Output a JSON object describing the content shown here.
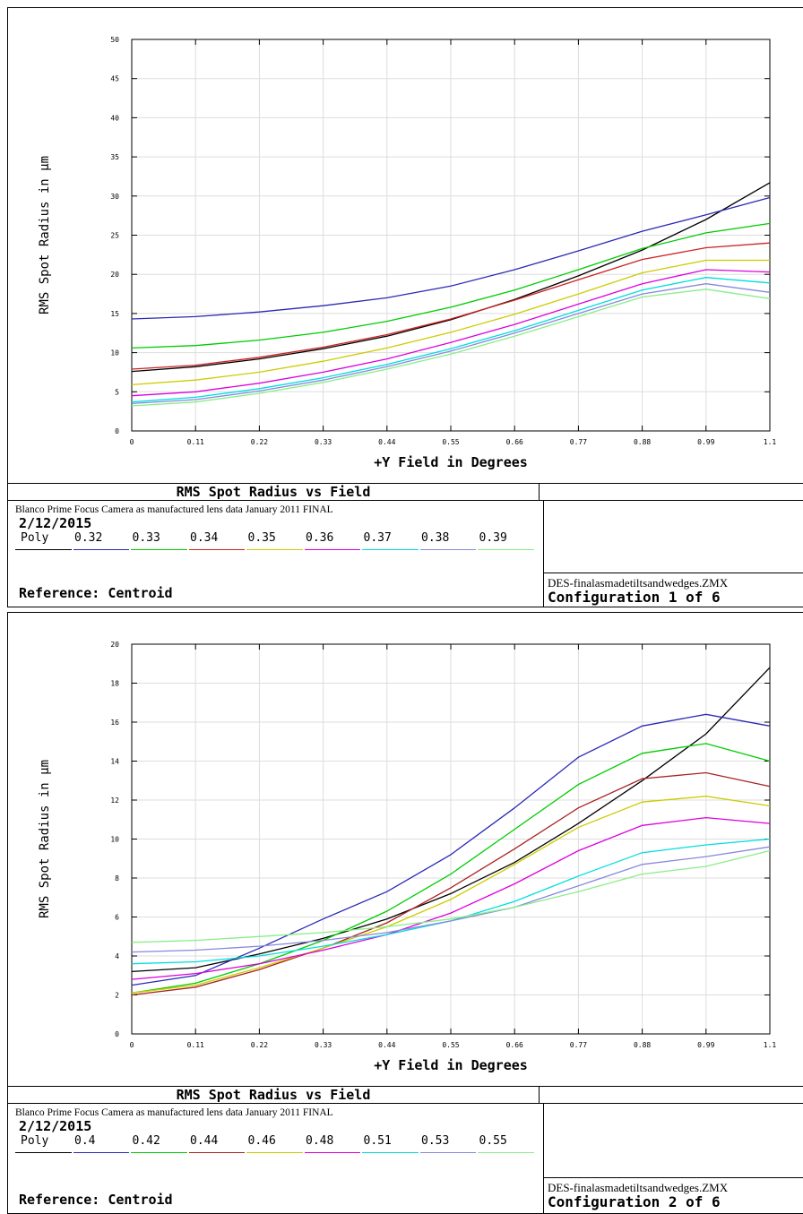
{
  "charts": [
    {
      "caption": "RMS Spot Radius vs Field",
      "lens_description": "Blanco Prime Focus Camera as manufactured lens data January 2011 FINAL",
      "date": "2/12/2015",
      "legend": [
        "Poly",
        "0.32",
        "0.33",
        "0.34",
        "0.35",
        "0.36",
        "0.37",
        "0.38",
        "0.39"
      ],
      "reference": "Reference: Centroid",
      "filename": "DES-finalasmadetiltsandwedges.ZMX",
      "configuration": "Configuration 1 of 6"
    },
    {
      "caption": "RMS Spot Radius vs Field",
      "lens_description": "Blanco Prime Focus Camera as manufactured lens data January 2011 FINAL",
      "date": "2/12/2015",
      "legend": [
        "Poly",
        "0.4",
        "0.42",
        "0.44",
        "0.46",
        "0.48",
        "0.51",
        "0.53",
        "0.55"
      ],
      "reference": "Reference: Centroid",
      "filename": "DES-finalasmadetiltsandwedges.ZMX",
      "configuration": "Configuration 2 of 6"
    }
  ],
  "chart_data": [
    {
      "type": "line",
      "xlabel": "+Y Field in Degrees",
      "ylabel": "RMS Spot Radius in µm",
      "xlim": [
        0,
        1.1
      ],
      "ylim": [
        0,
        50
      ],
      "xticks": [
        "0",
        "0.11",
        "0.22",
        "0.33",
        "0.44",
        "0.55",
        "0.66",
        "0.77",
        "0.88",
        "0.99",
        "1.1"
      ],
      "yticks": [
        "0",
        "5",
        "10",
        "15",
        "20",
        "25",
        "30",
        "35",
        "40",
        "45",
        "50"
      ],
      "grid": true,
      "x": [
        0,
        0.11,
        0.22,
        0.33,
        0.44,
        0.55,
        0.66,
        0.77,
        0.88,
        0.99,
        1.1
      ],
      "series": [
        {
          "name": "Poly",
          "color": "#000000",
          "values": [
            7.6,
            8.2,
            9.2,
            10.5,
            12.1,
            14.2,
            16.8,
            19.8,
            23.1,
            27.0,
            31.7
          ]
        },
        {
          "name": "0.32",
          "color": "#2a2ab5",
          "values": [
            14.3,
            14.6,
            15.2,
            16.0,
            17.0,
            18.5,
            20.6,
            23.0,
            25.5,
            27.6,
            29.8
          ]
        },
        {
          "name": "0.33",
          "color": "#00cc00",
          "values": [
            10.6,
            10.9,
            11.6,
            12.6,
            14.0,
            15.8,
            18.0,
            20.6,
            23.3,
            25.3,
            26.5
          ]
        },
        {
          "name": "0.34",
          "color": "#cc2222",
          "values": [
            7.9,
            8.4,
            9.4,
            10.7,
            12.3,
            14.3,
            16.7,
            19.3,
            21.9,
            23.4,
            24.0
          ]
        },
        {
          "name": "0.35",
          "color": "#cccc00",
          "values": [
            5.9,
            6.5,
            7.5,
            8.9,
            10.6,
            12.6,
            14.9,
            17.5,
            20.2,
            21.8,
            21.8
          ]
        },
        {
          "name": "0.36",
          "color": "#dd00dd",
          "values": [
            4.5,
            5.0,
            6.1,
            7.5,
            9.2,
            11.3,
            13.6,
            16.2,
            18.8,
            20.6,
            20.3
          ]
        },
        {
          "name": "0.37",
          "color": "#00dddd",
          "values": [
            3.7,
            4.3,
            5.4,
            6.8,
            8.5,
            10.5,
            12.8,
            15.4,
            18.0,
            19.6,
            18.9
          ]
        },
        {
          "name": "0.38",
          "color": "#8888dd",
          "values": [
            3.5,
            4.0,
            5.1,
            6.5,
            8.2,
            10.2,
            12.5,
            15.0,
            17.5,
            18.8,
            17.7
          ]
        },
        {
          "name": "0.39",
          "color": "#88ee88",
          "values": [
            3.2,
            3.7,
            4.8,
            6.2,
            7.9,
            9.8,
            12.1,
            14.6,
            17.1,
            18.1,
            16.9
          ]
        }
      ]
    },
    {
      "type": "line",
      "xlabel": "+Y Field in Degrees",
      "ylabel": "RMS Spot Radius in µm",
      "xlim": [
        0,
        1.1
      ],
      "ylim": [
        0,
        20
      ],
      "xticks": [
        "0",
        "0.11",
        "0.22",
        "0.33",
        "0.44",
        "0.55",
        "0.66",
        "0.77",
        "0.88",
        "0.99",
        "1.1"
      ],
      "yticks": [
        "0",
        "2",
        "4",
        "6",
        "8",
        "10",
        "12",
        "14",
        "16",
        "18",
        "20"
      ],
      "grid": true,
      "x": [
        0,
        0.11,
        0.22,
        0.33,
        0.44,
        0.55,
        0.66,
        0.77,
        0.88,
        0.99,
        1.1
      ],
      "series": [
        {
          "name": "Poly",
          "color": "#000000",
          "values": [
            3.2,
            3.4,
            4.1,
            4.9,
            5.9,
            7.2,
            8.8,
            10.8,
            13.0,
            15.4,
            18.8
          ]
        },
        {
          "name": "0.4",
          "color": "#2a2ab5",
          "values": [
            2.5,
            3.0,
            4.4,
            5.9,
            7.3,
            9.2,
            11.6,
            14.2,
            15.8,
            16.4,
            15.8
          ]
        },
        {
          "name": "0.42",
          "color": "#00cc00",
          "values": [
            2.1,
            2.6,
            3.6,
            4.8,
            6.3,
            8.2,
            10.5,
            12.8,
            14.4,
            14.9,
            14.0
          ]
        },
        {
          "name": "0.44",
          "color": "#aa2222",
          "values": [
            2.0,
            2.4,
            3.3,
            4.4,
            5.7,
            7.5,
            9.5,
            11.6,
            13.1,
            13.4,
            12.7
          ]
        },
        {
          "name": "0.46",
          "color": "#cccc00",
          "values": [
            2.1,
            2.5,
            3.4,
            4.4,
            5.5,
            6.9,
            8.7,
            10.6,
            11.9,
            12.2,
            11.7
          ]
        },
        {
          "name": "0.48",
          "color": "#dd00dd",
          "values": [
            2.8,
            3.1,
            3.6,
            4.3,
            5.1,
            6.2,
            7.7,
            9.4,
            10.7,
            11.1,
            10.8
          ]
        },
        {
          "name": "0.51",
          "color": "#00dddd",
          "values": [
            3.6,
            3.7,
            4.0,
            4.5,
            5.1,
            5.8,
            6.8,
            8.1,
            9.3,
            9.7,
            10.0
          ]
        },
        {
          "name": "0.53",
          "color": "#8888dd",
          "values": [
            4.2,
            4.3,
            4.5,
            4.8,
            5.2,
            5.8,
            6.5,
            7.6,
            8.7,
            9.1,
            9.6
          ]
        },
        {
          "name": "0.55",
          "color": "#88ee88",
          "values": [
            4.7,
            4.8,
            5.0,
            5.2,
            5.5,
            5.9,
            6.5,
            7.3,
            8.2,
            8.6,
            9.4
          ]
        }
      ]
    }
  ]
}
